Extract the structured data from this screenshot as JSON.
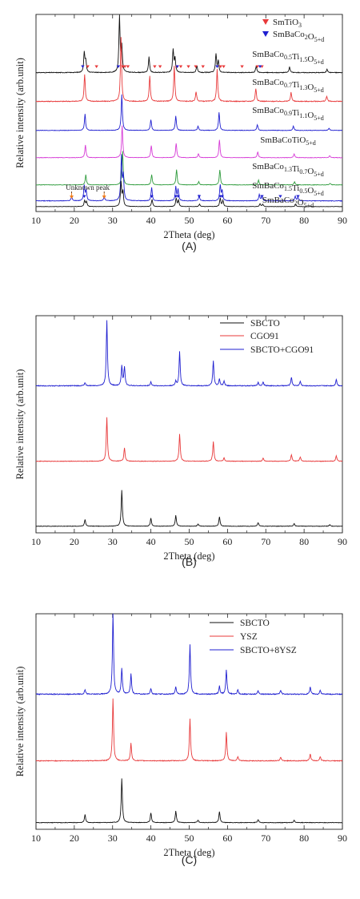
{
  "chart_data": [
    {
      "type": "line",
      "panel_label": "(A)",
      "xlabel": "2Theta (deg)",
      "ylabel": "Relative intensity (arb.unit)",
      "xlim": [
        10,
        90
      ],
      "xticks": [
        10,
        20,
        30,
        40,
        50,
        60,
        70,
        80,
        90
      ],
      "grid": false,
      "legend_placement": "top-right",
      "legend": [
        {
          "marker": "red-down-triangle",
          "base": "SmTiO",
          "sub": "3",
          "mid": "",
          "sub2": "",
          "tail": ""
        },
        {
          "marker": "blue-down-triangle",
          "base": "SmBaCo",
          "sub": "2",
          "mid": "O",
          "sub2": "5+d",
          "tail": ""
        }
      ],
      "annotation": "Unknown peak",
      "colors": {
        "red": "#e8393a",
        "blue": "#1f1fd0",
        "black": "#111111",
        "magenta": "#d63ad6",
        "green": "#2e9b3c",
        "orange": "#f07d1c"
      },
      "series": [
        {
          "name": "SmBaCo0.5Ti1.5O5+d",
          "color": "#111111",
          "label": {
            "base": "SmBaCo",
            "sub": "0.5",
            "mid": "Ti",
            "sub2": "1.5",
            "tail": "O",
            "sub3": "5+d"
          },
          "peaks": [
            [
              22.6,
              0.35
            ],
            [
              23.0,
              0.2
            ],
            [
              31.8,
              1.0
            ],
            [
              32.4,
              0.45
            ],
            [
              39.5,
              0.28
            ],
            [
              45.8,
              0.4
            ],
            [
              46.3,
              0.25
            ],
            [
              52.0,
              0.12
            ],
            [
              57.0,
              0.33
            ],
            [
              57.6,
              0.2
            ],
            [
              67.5,
              0.12
            ],
            [
              76.2,
              0.1
            ],
            [
              86.0,
              0.06
            ]
          ]
        },
        {
          "name": "SmBaCo0.7Ti1.3O5+d",
          "color": "#e8393a",
          "label": {
            "base": "SmBaCo",
            "sub": "0.7",
            "mid": "Ti",
            "sub2": "1.3",
            "tail": "O",
            "sub3": "5+d"
          },
          "peaks": [
            [
              22.7,
              0.42
            ],
            [
              32.2,
              1.0
            ],
            [
              39.7,
              0.4
            ],
            [
              46.1,
              0.55
            ],
            [
              51.8,
              0.15
            ],
            [
              57.3,
              0.5
            ],
            [
              67.4,
              0.2
            ],
            [
              76.6,
              0.14
            ],
            [
              85.9,
              0.08
            ]
          ]
        },
        {
          "name": "SmBaCo0.9Ti1.1O5+d",
          "color": "#1f1fd0",
          "label": {
            "base": "SmBaCo",
            "sub": "0.9",
            "mid": "Ti",
            "sub2": "1.1",
            "tail": "O",
            "sub3": "5+d"
          },
          "peaks": [
            [
              22.8,
              0.45
            ],
            [
              32.4,
              1.0
            ],
            [
              40.0,
              0.3
            ],
            [
              46.5,
              0.4
            ],
            [
              52.3,
              0.12
            ],
            [
              57.8,
              0.5
            ],
            [
              67.8,
              0.16
            ],
            [
              77.2,
              0.12
            ],
            [
              86.5,
              0.06
            ]
          ]
        },
        {
          "name": "SmBaCoTiO5+d",
          "color": "#d63ad6",
          "label": {
            "base": "SmBaCoTiO",
            "sub": "5+d",
            "mid": "",
            "sub2": "",
            "tail": "",
            "sub3": ""
          },
          "peaks": [
            [
              22.9,
              0.4
            ],
            [
              32.5,
              1.0
            ],
            [
              40.1,
              0.38
            ],
            [
              46.6,
              0.45
            ],
            [
              52.4,
              0.12
            ],
            [
              57.9,
              0.55
            ],
            [
              67.9,
              0.18
            ],
            [
              77.4,
              0.12
            ],
            [
              86.7,
              0.06
            ]
          ]
        },
        {
          "name": "SmBaCo1.3Ti0.7O5+d",
          "color": "#2e9b3c",
          "label": {
            "base": "SmBaCo",
            "sub": "1.3",
            "mid": "Ti",
            "sub2": "0.7",
            "tail": "O",
            "sub3": "5+d"
          },
          "peaks": [
            [
              23.0,
              0.3
            ],
            [
              32.6,
              1.0
            ],
            [
              40.2,
              0.3
            ],
            [
              46.7,
              0.45
            ],
            [
              52.5,
              0.1
            ],
            [
              58.0,
              0.45
            ],
            [
              68.1,
              0.14
            ],
            [
              77.5,
              0.1
            ],
            [
              86.8,
              0.05
            ]
          ]
        },
        {
          "name": "SmBaCo1.5Ti0.5O5+d",
          "color": "#1f1fd0",
          "label": {
            "base": "SmBaCo",
            "sub": "1.5",
            "mid": "Ti",
            "sub2": "0.5",
            "tail": "O",
            "sub3": "5+d"
          },
          "peaks": [
            [
              19.3,
              0.1
            ],
            [
              22.6,
              0.35
            ],
            [
              23.1,
              0.22
            ],
            [
              27.8,
              0.1
            ],
            [
              32.3,
              1.0
            ],
            [
              32.8,
              0.55
            ],
            [
              40.2,
              0.3
            ],
            [
              46.5,
              0.32
            ],
            [
              47.1,
              0.25
            ],
            [
              52.6,
              0.12
            ],
            [
              58.1,
              0.35
            ],
            [
              58.6,
              0.22
            ],
            [
              68.3,
              0.14
            ],
            [
              69.0,
              0.1
            ],
            [
              77.7,
              0.1
            ],
            [
              78.4,
              0.08
            ]
          ]
        },
        {
          "name": "SmBaCo2O5+d",
          "color": "#111111",
          "label": {
            "base": "SmBaCo",
            "sub": "2",
            "mid": "O",
            "sub2": "5+d",
            "tail": "",
            "sub3": ""
          },
          "peaks": [
            [
              22.7,
              0.25
            ],
            [
              23.2,
              0.2
            ],
            [
              32.2,
              1.0
            ],
            [
              32.7,
              0.6
            ],
            [
              40.3,
              0.3
            ],
            [
              46.6,
              0.35
            ],
            [
              47.2,
              0.25
            ],
            [
              52.7,
              0.1
            ],
            [
              58.1,
              0.35
            ],
            [
              58.8,
              0.25
            ],
            [
              68.5,
              0.12
            ],
            [
              69.2,
              0.1
            ],
            [
              77.8,
              0.08
            ]
          ]
        }
      ],
      "markers": [
        {
          "type": "red",
          "series": 0,
          "x": [
            23.5,
            25.8,
            32.6,
            33.2,
            34.0,
            41.0,
            42.4,
            46.8,
            47.8,
            49.8,
            51.7,
            53.6,
            58.2,
            59.0,
            63.8,
            67.8,
            69.0
          ]
        },
        {
          "type": "blue",
          "series": 0,
          "x": [
            22.2,
            31.5,
            46.9,
            57.3,
            68.5
          ]
        },
        {
          "type": "blue",
          "series": 5,
          "x": [
            22.6,
            40.2,
            46.5,
            47.1,
            52.6,
            58.1,
            58.6,
            69.0,
            73.8,
            78.4
          ]
        }
      ],
      "unknown_peaks": [
        19.3,
        27.8
      ]
    },
    {
      "type": "line",
      "panel_label": "(B)",
      "xlabel": "2Theta (deg)",
      "ylabel": "Relative intensity (arb.unit)",
      "xlim": [
        10,
        90
      ],
      "xticks": [
        10,
        20,
        30,
        40,
        50,
        60,
        70,
        80,
        90
      ],
      "grid": false,
      "legend_placement": "top-right",
      "series": [
        {
          "name": "SBCTO",
          "color": "#111111",
          "peaks": [
            [
              22.8,
              0.18
            ],
            [
              32.4,
              1.0
            ],
            [
              40.0,
              0.22
            ],
            [
              46.5,
              0.3
            ],
            [
              52.3,
              0.06
            ],
            [
              57.9,
              0.26
            ],
            [
              68.0,
              0.1
            ],
            [
              77.4,
              0.07
            ],
            [
              86.7,
              0.04
            ]
          ]
        },
        {
          "name": "CGO91",
          "color": "#e8393a",
          "peaks": [
            [
              28.5,
              1.0
            ],
            [
              33.1,
              0.3
            ],
            [
              47.5,
              0.62
            ],
            [
              56.3,
              0.45
            ],
            [
              59.1,
              0.08
            ],
            [
              69.3,
              0.07
            ],
            [
              76.7,
              0.15
            ],
            [
              79.0,
              0.1
            ],
            [
              88.4,
              0.12
            ]
          ]
        },
        {
          "name": "SBCTO+CGO91",
          "color": "#1f1fd0",
          "peaks": [
            [
              22.8,
              0.05
            ],
            [
              28.5,
              1.0
            ],
            [
              32.4,
              0.3
            ],
            [
              33.1,
              0.28
            ],
            [
              40.0,
              0.06
            ],
            [
              46.5,
              0.07
            ],
            [
              47.5,
              0.52
            ],
            [
              56.3,
              0.38
            ],
            [
              57.9,
              0.1
            ],
            [
              59.1,
              0.07
            ],
            [
              68.0,
              0.05
            ],
            [
              69.3,
              0.06
            ],
            [
              76.7,
              0.13
            ],
            [
              79.0,
              0.07
            ],
            [
              88.4,
              0.1
            ]
          ]
        }
      ]
    },
    {
      "type": "line",
      "panel_label": "(C)",
      "xlabel": "2Theta (deg)",
      "ylabel": "Relative intensity (arb.unit)",
      "xlim": [
        10,
        90
      ],
      "xticks": [
        10,
        20,
        30,
        40,
        50,
        60,
        70,
        80,
        90
      ],
      "grid": false,
      "legend_placement": "top-right",
      "series": [
        {
          "name": "SBCTO",
          "color": "#111111",
          "peaks": [
            [
              22.8,
              0.18
            ],
            [
              32.4,
              1.0
            ],
            [
              40.0,
              0.22
            ],
            [
              46.5,
              0.26
            ],
            [
              52.3,
              0.06
            ],
            [
              57.9,
              0.25
            ],
            [
              68.0,
              0.07
            ],
            [
              77.4,
              0.06
            ]
          ]
        },
        {
          "name": "YSZ",
          "color": "#e8393a",
          "peaks": [
            [
              30.1,
              1.0
            ],
            [
              34.8,
              0.28
            ],
            [
              50.2,
              0.68
            ],
            [
              59.7,
              0.46
            ],
            [
              62.7,
              0.07
            ],
            [
              73.9,
              0.06
            ],
            [
              81.6,
              0.11
            ],
            [
              84.2,
              0.07
            ]
          ]
        },
        {
          "name": "SBCTO+8YSZ",
          "color": "#1f1fd0",
          "peaks": [
            [
              22.8,
              0.06
            ],
            [
              30.1,
              1.0
            ],
            [
              32.4,
              0.32
            ],
            [
              34.8,
              0.25
            ],
            [
              40.0,
              0.07
            ],
            [
              46.5,
              0.09
            ],
            [
              50.2,
              0.62
            ],
            [
              57.9,
              0.1
            ],
            [
              59.7,
              0.3
            ],
            [
              62.7,
              0.06
            ],
            [
              68.0,
              0.04
            ],
            [
              73.9,
              0.05
            ],
            [
              81.6,
              0.09
            ],
            [
              84.2,
              0.05
            ]
          ]
        }
      ]
    }
  ]
}
